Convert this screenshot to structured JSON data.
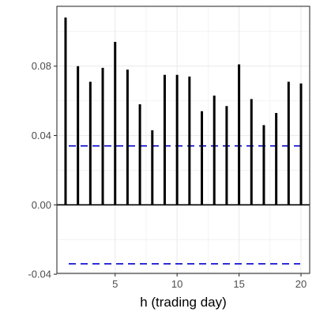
{
  "chart_data": {
    "type": "bar",
    "title": "",
    "xlabel": "h (trading day)",
    "ylabel": "",
    "x": [
      1,
      2,
      3,
      4,
      5,
      6,
      7,
      8,
      9,
      10,
      11,
      12,
      13,
      14,
      15,
      16,
      17,
      18,
      19,
      20
    ],
    "values": [
      0.108,
      0.08,
      0.071,
      0.079,
      0.094,
      0.078,
      0.058,
      0.043,
      0.075,
      0.075,
      0.074,
      0.054,
      0.063,
      0.057,
      0.081,
      0.061,
      0.046,
      0.053,
      0.071,
      0.07
    ],
    "xlim": [
      0.3,
      20.7
    ],
    "ylim": [
      -0.0395,
      0.1145
    ],
    "x_ticks": [
      5,
      10,
      15,
      20
    ],
    "y_ticks": [
      -0.04,
      0.0,
      0.04,
      0.08
    ],
    "x_tick_labels": [
      "5",
      "10",
      "15",
      "20"
    ],
    "y_tick_labels": [
      "-0.04",
      "0.00",
      "0.04",
      "0.08"
    ],
    "zero_line": 0.0,
    "confidence_bounds": [
      0.034,
      -0.034
    ],
    "grid": true,
    "colors": {
      "bars": "#000000",
      "bounds": "#0000cd",
      "panel_border": "#333333",
      "grid": "#ebebeb"
    }
  }
}
